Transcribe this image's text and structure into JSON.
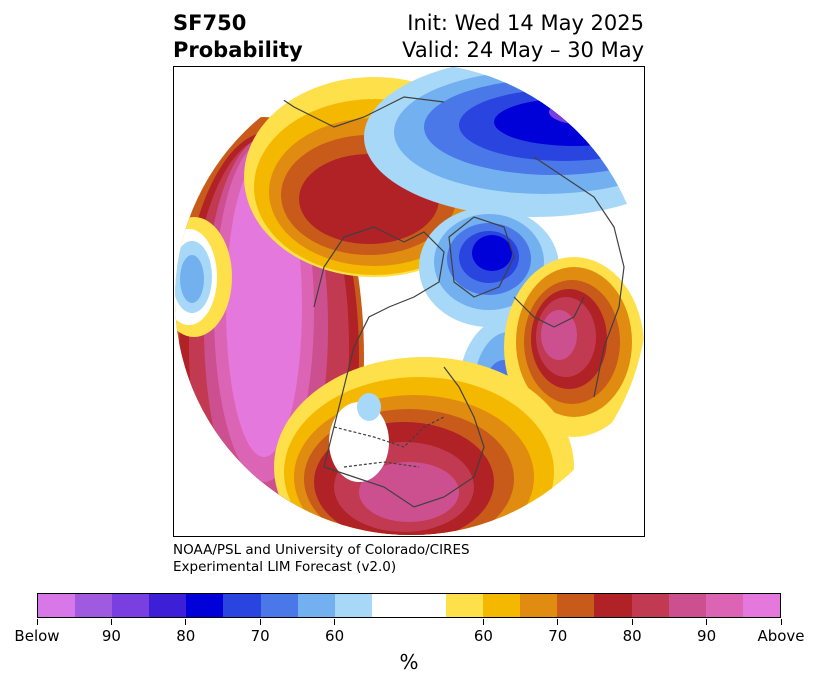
{
  "title": {
    "left_line1": "SF750",
    "left_line2": "Probability",
    "right_line1": "Init: Wed 14 May 2025",
    "right_line2": "Valid: 24 May – 30 May"
  },
  "credit": {
    "line1": "NOAA/PSL and University of Colorado/CIRES",
    "line2": "Experimental LIM Forecast (v2.0)"
  },
  "colorbar": {
    "colors": [
      "#d878e8",
      "#a05ae0",
      "#7a3fe0",
      "#3e1fd8",
      "#0000d8",
      "#2a44e0",
      "#4a78e8",
      "#72b0f0",
      "#a8d8f8",
      "#ffffff",
      "#ffffff",
      "#fee04a",
      "#f5b800",
      "#e08c10",
      "#c85a1a",
      "#b02226",
      "#c23a52",
      "#cc5090",
      "#dc64b4",
      "#e478dc"
    ],
    "labels": [
      "Below",
      "90",
      "80",
      "70",
      "60",
      "60",
      "70",
      "80",
      "90",
      "Above"
    ],
    "unit": "%"
  },
  "map": {
    "projection": "north polar stereographic",
    "colors": {
      "above_outer": "#fee04a",
      "above_60": "#f5b800",
      "above_65": "#e08c10",
      "above_70": "#c85a1a",
      "above_75": "#b02226",
      "above_80": "#c23a52",
      "above_85": "#cc5090",
      "above_90": "#dc64b4",
      "above_95": "#e478dc",
      "below_55": "#a8d8f8",
      "below_60": "#72b0f0",
      "below_65": "#4a78e8",
      "below_70": "#2a44e0",
      "below_75": "#0000d8",
      "below_80": "#3e1fd8",
      "below_85": "#7a3fe0",
      "below_90": "#a05ae0",
      "coastline": "#404040"
    }
  }
}
